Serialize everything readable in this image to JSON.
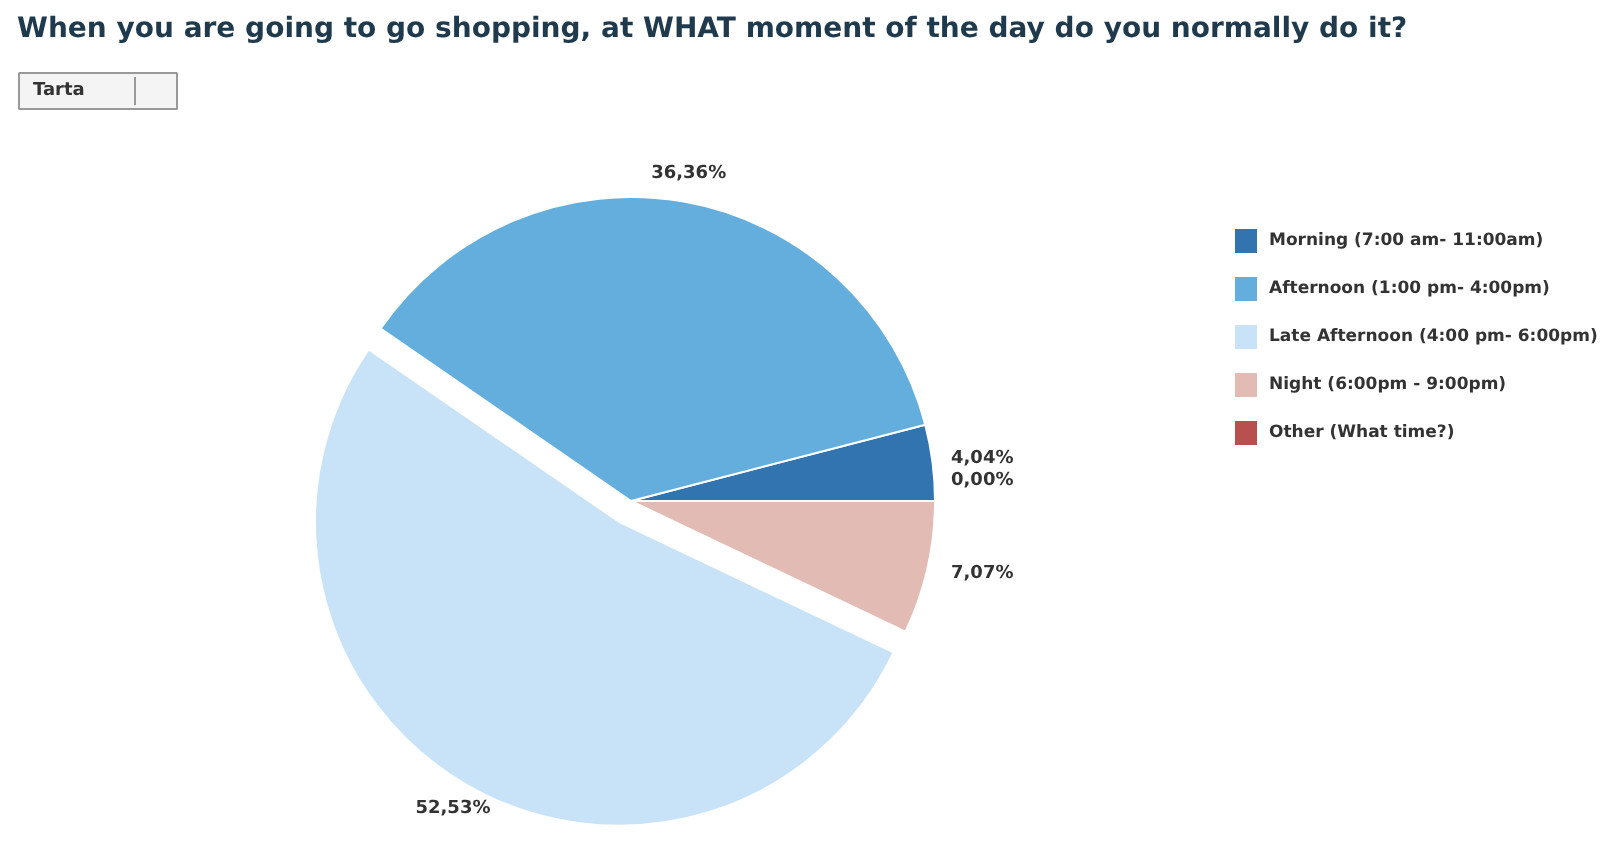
{
  "chart_data": {
    "type": "pie",
    "title": "When you are going to go shopping, at WHAT moment of the day do you normally do it?",
    "categories": [
      "Morning (7:00 am- 11:00am)",
      "Afternoon (1:00 pm- 4:00pm)",
      "Late Afternoon (4:00 pm- 6:00pm)",
      "Night (6:00pm - 9:00pm)",
      "Other (What time?)"
    ],
    "values": [
      4.04,
      36.36,
      52.53,
      7.07,
      0.0
    ],
    "colors": [
      "#3174b0",
      "#64aedd",
      "#c8e3f8",
      "#e2bcb4",
      "#b85050"
    ],
    "value_labels": [
      "4,04%",
      "36,36%",
      "52,53%",
      "7,07%",
      "0,00%"
    ],
    "legend": "right",
    "annotations": [
      "Tarta"
    ]
  }
}
